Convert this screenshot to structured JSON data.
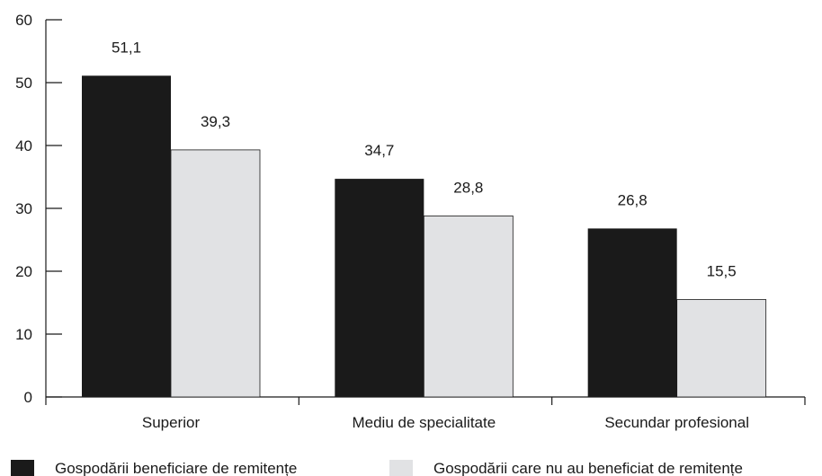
{
  "chart_data": {
    "type": "bar",
    "categories": [
      "Superior",
      "Mediu de specialitate",
      "Secundar profesional"
    ],
    "series": [
      {
        "name": "Gospodării beneficiare de remitențe",
        "values": [
          51.1,
          34.7,
          26.8
        ],
        "labels": [
          "51,1",
          "34,7",
          "26,8"
        ],
        "color": "#1a1a1a"
      },
      {
        "name": "Gospodării care nu au beneficiat de remitențe",
        "values": [
          39.3,
          28.8,
          15.5
        ],
        "labels": [
          "39,3",
          "28,8",
          "15,5"
        ],
        "color": "#e1e2e4"
      }
    ],
    "y_ticks": [
      "0",
      "10",
      "20",
      "30",
      "40",
      "50",
      "60"
    ],
    "ylim": [
      0,
      60
    ],
    "grid": false,
    "legend_position": "bottom"
  }
}
